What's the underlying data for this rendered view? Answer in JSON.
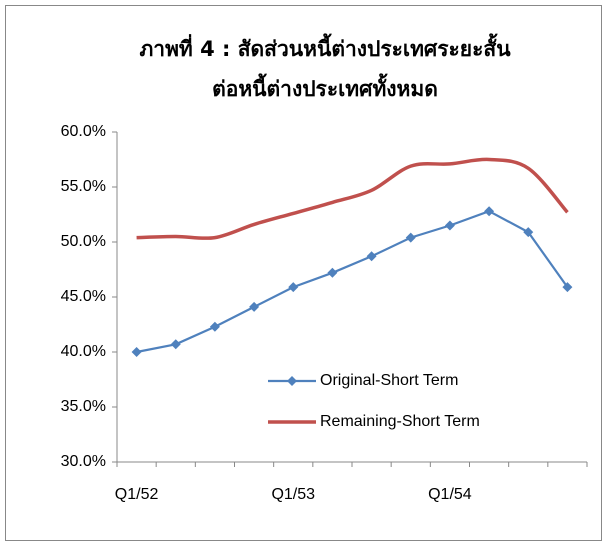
{
  "chart_data": {
    "type": "line",
    "title": [
      "ภาพที่ 4 : สัดส่วนหนี้ต่างประเทศระยะสั้น",
      "ต่อหนี้ต่างประเทศทั้งหมด"
    ],
    "categories": [
      "Q1/52",
      null,
      null,
      null,
      "Q1/53",
      null,
      null,
      null,
      "Q1/54",
      null,
      null,
      null
    ],
    "series": [
      {
        "name": "Original-Short Term",
        "color": "#4f81bd",
        "values": [
          40.0,
          40.7,
          42.3,
          44.1,
          45.9,
          47.2,
          48.7,
          50.4,
          51.5,
          52.8,
          50.9,
          45.9
        ]
      },
      {
        "name": "Remaining-Short Term",
        "color": "#c0504d",
        "values": [
          50.4,
          50.5,
          50.4,
          51.6,
          52.6,
          53.6,
          54.7,
          56.9,
          57.1,
          57.5,
          56.7,
          52.7
        ]
      }
    ],
    "ylim": [
      30,
      60
    ],
    "yticks": [
      {
        "value": 30,
        "label": "30.0%"
      },
      {
        "value": 35,
        "label": "35.0%"
      },
      {
        "value": 40,
        "label": "40.0%"
      },
      {
        "value": 45,
        "label": "45.0%"
      },
      {
        "value": 50,
        "label": "50.0%"
      },
      {
        "value": 55,
        "label": "55.0%"
      },
      {
        "value": 60,
        "label": "60.0%"
      }
    ],
    "grid": false,
    "legend": "inside"
  }
}
